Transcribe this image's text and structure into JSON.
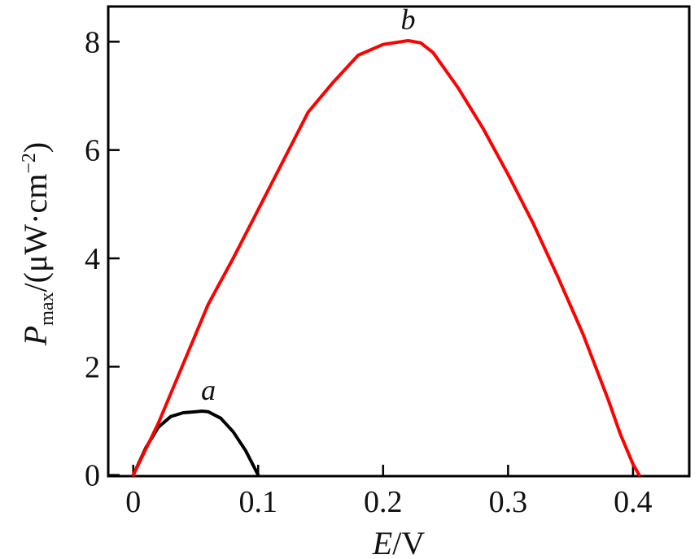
{
  "chart_data": {
    "type": "line",
    "xlabel": {
      "var": "E",
      "unit": "/V"
    },
    "ylabel": {
      "var": "P",
      "sub": "max",
      "unit_prefix": "/(μW·cm",
      "unit_exp": "−2",
      "unit_suffix": ")"
    },
    "xlim": [
      -0.02,
      0.445
    ],
    "ylim": [
      -0.02,
      8.65
    ],
    "xticks": [
      0,
      0.1,
      0.2,
      0.3,
      0.4
    ],
    "xtick_labels": [
      "0",
      "0.1",
      "0.2",
      "0.3",
      "0.4"
    ],
    "yticks": [
      0,
      2,
      4,
      6,
      8
    ],
    "ytick_labels": [
      "0",
      "2",
      "4",
      "6",
      "8"
    ],
    "grid": false,
    "series": [
      {
        "name": "a",
        "color": "#000000",
        "x": [
          0.0,
          0.01,
          0.02,
          0.03,
          0.04,
          0.05,
          0.055,
          0.06,
          0.07,
          0.08,
          0.09,
          0.1
        ],
        "y": [
          0.0,
          0.5,
          0.88,
          1.08,
          1.15,
          1.17,
          1.18,
          1.17,
          1.05,
          0.8,
          0.45,
          0.0
        ]
      },
      {
        "name": "b",
        "color": "#ff0000",
        "x": [
          0.0,
          0.02,
          0.04,
          0.06,
          0.08,
          0.1,
          0.12,
          0.14,
          0.16,
          0.18,
          0.2,
          0.22,
          0.23,
          0.24,
          0.26,
          0.28,
          0.3,
          0.32,
          0.34,
          0.36,
          0.38,
          0.39,
          0.4,
          0.405
        ],
        "y": [
          0.0,
          0.95,
          2.05,
          3.15,
          4.0,
          4.9,
          5.8,
          6.7,
          7.25,
          7.75,
          7.95,
          8.02,
          7.98,
          7.8,
          7.15,
          6.4,
          5.55,
          4.65,
          3.65,
          2.6,
          1.4,
          0.75,
          0.2,
          0.0
        ]
      }
    ]
  }
}
